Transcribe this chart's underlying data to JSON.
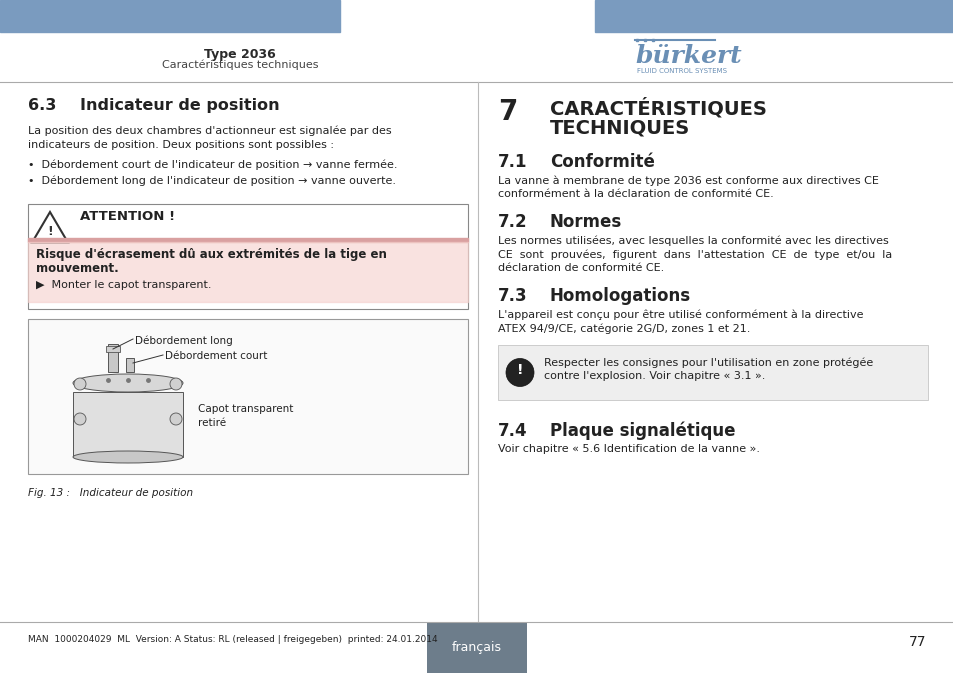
{
  "bg_color": "#ffffff",
  "header_bar_color": "#7a9bbf",
  "text_color": "#222222",
  "text_color_light": "#444444",
  "header_title": "Type 2036",
  "header_subtitle": "Caractéristiques techniques",
  "burkert_text": "bürkert",
  "burkert_sub": "FLUID CONTROL SYSTEMS",
  "footer_text": "MAN  1000204029  ML  Version: A Status: RL (released | freigegeben)  printed: 24.01.2014",
  "footer_lang_bg": "#6d7d8b",
  "footer_lang_text": "français",
  "footer_page": "77",
  "left_section_title_num": "6.3",
  "left_section_title": "Indicateur de position",
  "left_para1_l1": "La position des deux chambres d'actionneur est signalée par des",
  "left_para1_l2": "indicateurs de position. Deux positions sont possibles :",
  "left_bullet1": "Débordement court de l'indicateur de position → vanne fermée.",
  "left_bullet2": "Débordement long de l'indicateur de position → vanne ouverte.",
  "attention_title": "ATTENTION !",
  "attention_warning_bg": "#d9a0a0",
  "attention_warning_text_l1": "Risque d'écrasement dû aux extrémités de la tige en",
  "attention_warning_text_l2": "mouvement.",
  "attention_action": "▶  Monter le capot transparent.",
  "fig_label1": "Débordement long",
  "fig_label2": "Débordement court",
  "fig_label3_l1": "Capot transparent",
  "fig_label3_l2": "retiré",
  "fig_caption": "Fig. 13 :   Indicateur de position",
  "right_section_title_num": "7",
  "right_section_title_l1": "CARACTÉRISTIQUES",
  "right_section_title_l2": "TECHNIQUES",
  "right_71_num": "7.1",
  "right_71_title": "Conformité",
  "right_71_text_l1": "La vanne à membrane de type 2036 est conforme aux directives CE",
  "right_71_text_l2": "conformément à la déclaration de conformité CE.",
  "right_72_num": "7.2",
  "right_72_title": "Normes",
  "right_72_text_l1": "Les normes utilisées, avec lesquelles la conformité avec les directives",
  "right_72_text_l2": "CE  sont  prouvées,  figurent  dans  l'attestation  CE  de  type  et/ou  la",
  "right_72_text_l3": "déclaration de conformité CE.",
  "right_73_num": "7.3",
  "right_73_title": "Homologations",
  "right_73_text_l1": "L'appareil est conçu pour être utilisé conformément à la directive",
  "right_73_text_l2": "ATEX 94/9/CE, catégorie 2G/D, zones 1 et 21.",
  "right_note_bg": "#eeeeee",
  "right_note_text_l1": "Respecter les consignes pour l'utilisation en zone protégée",
  "right_note_text_l2": "contre l'explosion. Voir chapitre « 3.1 ».",
  "right_74_num": "7.4",
  "right_74_title": "Plaque signalétique",
  "right_74_text": "Voir chapitre « 5.6 Identification de la vanne »."
}
